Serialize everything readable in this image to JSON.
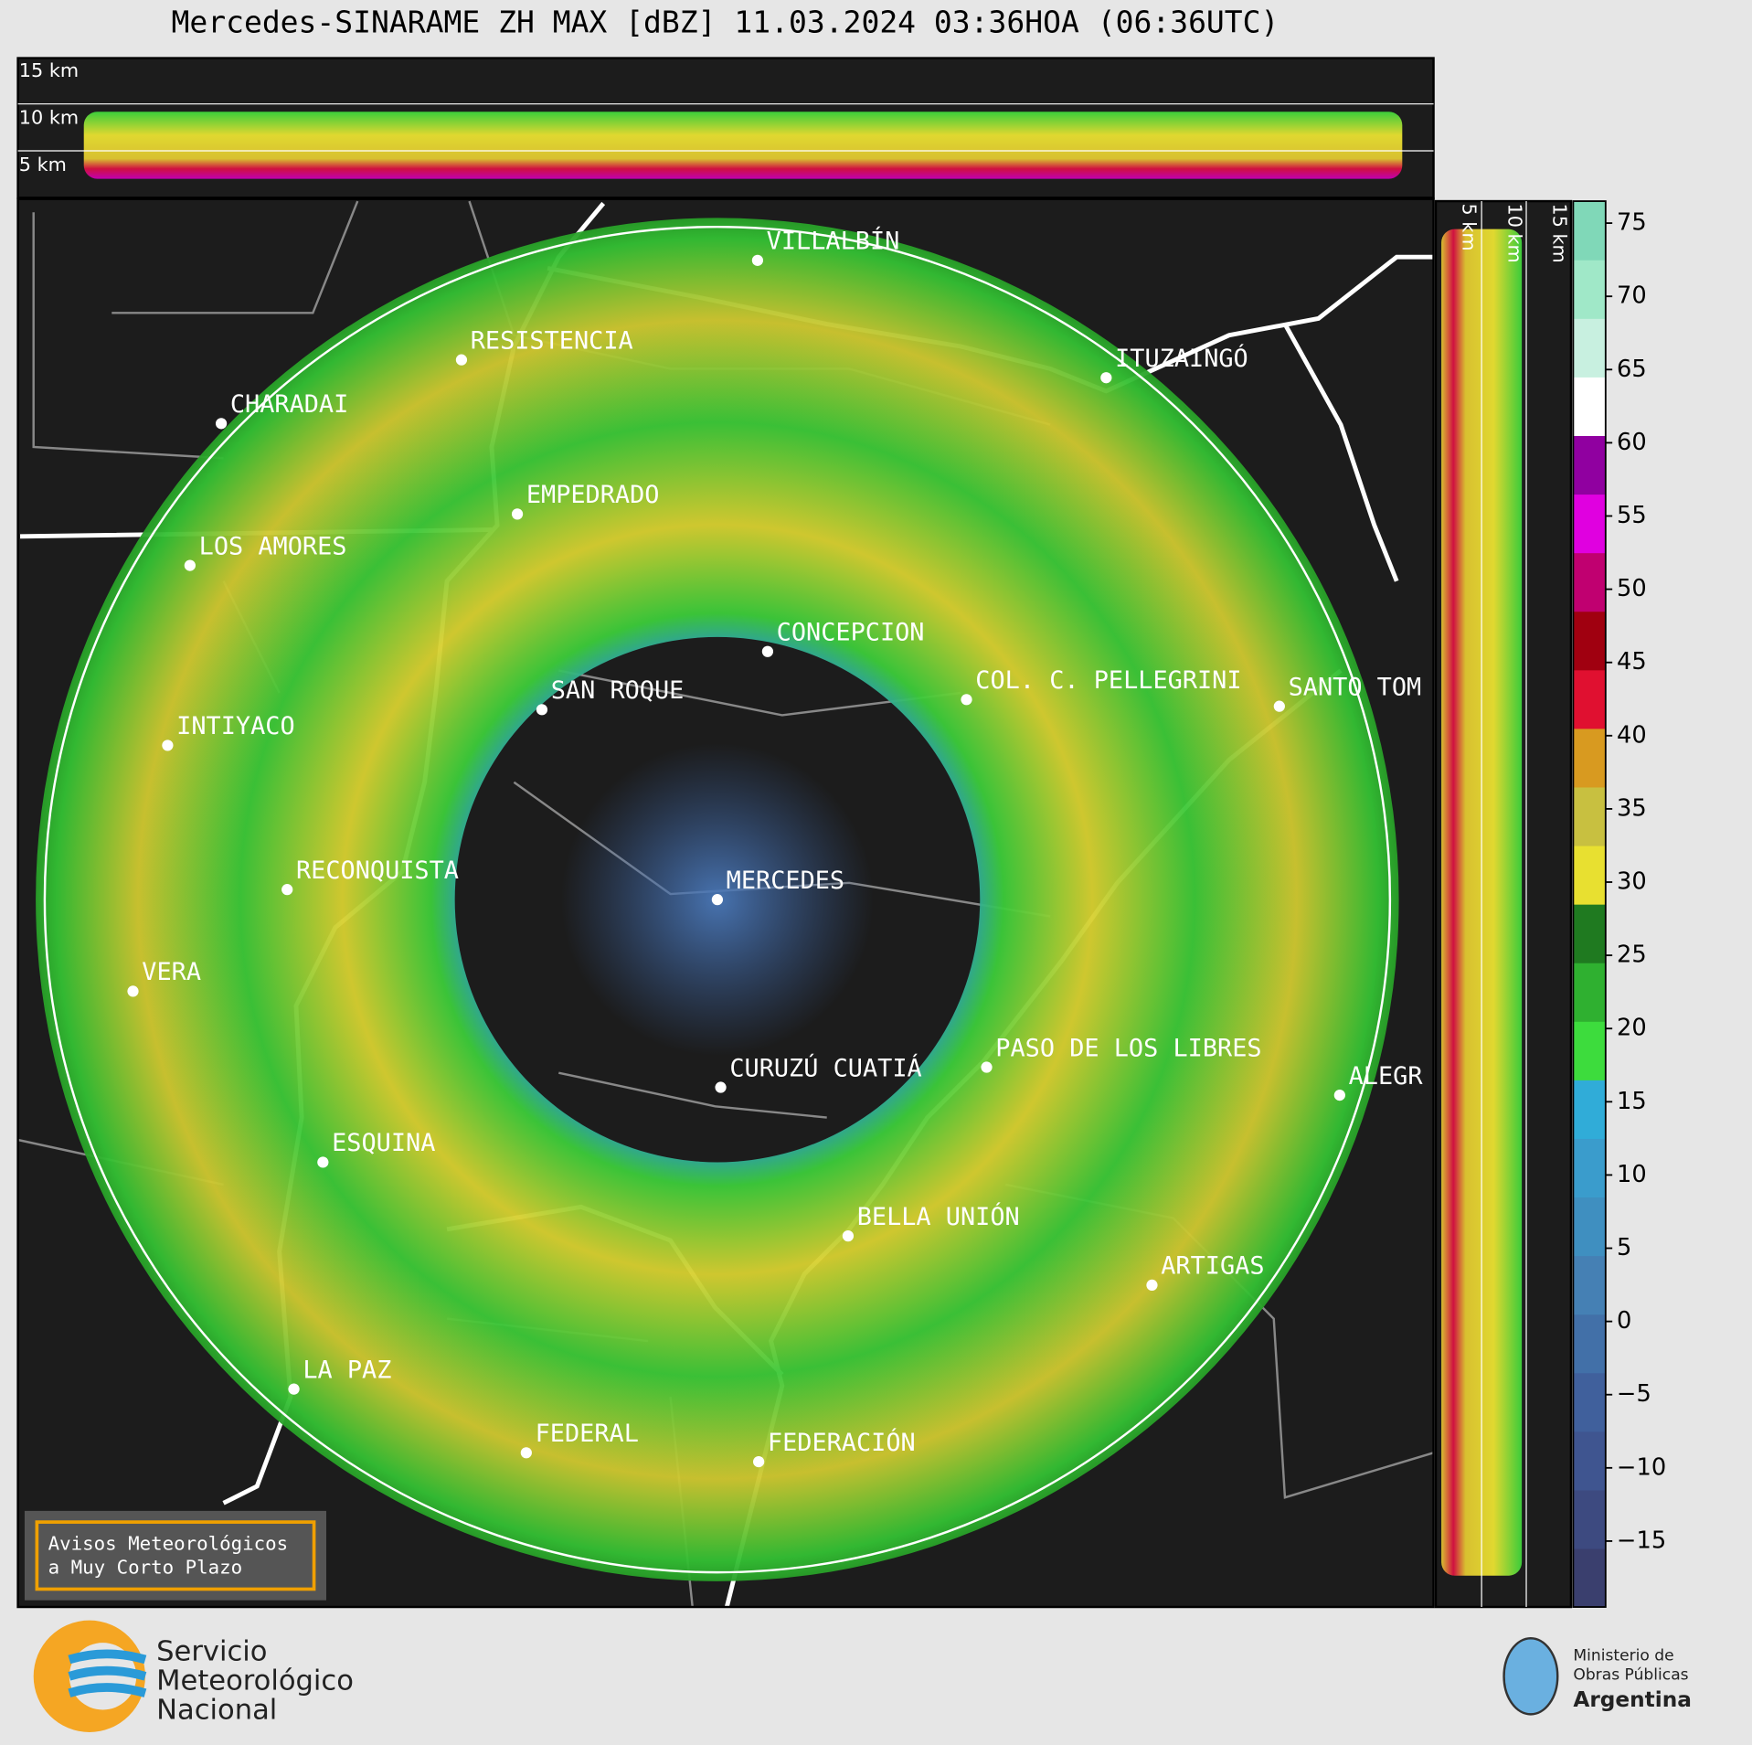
{
  "title": "Mercedes-SINARAME ZH MAX [dBZ] 11.03.2024 03:36HOA (06:36UTC)",
  "top_panel_labels": [
    "15 km",
    "10 km",
    "5 km"
  ],
  "right_panel_labels": [
    "5 km",
    "10 km",
    "15 km"
  ],
  "cities": [
    "VILLALBÍN",
    "RESISTENCIA",
    "CHARADAI",
    "ITUZAINGÓ",
    "EMPEDRADO",
    "LOS AMORES",
    "CONCEPCION",
    "SAN ROQUE",
    "COL. C. PELLEGRINI",
    "SANTO TOM",
    "INTIYACO",
    "RECONQUISTA",
    "MERCEDES",
    "VERA",
    "CURUZÚ CUATIÁ",
    "PASO DE LOS LIBRES",
    "ALEGR",
    "ESQUINA",
    "BELLA UNIÓN",
    "ARTIGAS",
    "LA PAZ",
    "FEDERAL",
    "FEDERACIÓN"
  ],
  "colorbar": {
    "lim": [
      -19.5,
      76.5
    ],
    "ticks": [
      {
        "value": -15,
        "label": "−15"
      },
      {
        "value": -10,
        "label": "−10"
      },
      {
        "value": -5,
        "label": "−5"
      },
      0,
      5,
      10,
      15,
      20,
      25,
      30,
      35,
      40,
      45,
      50,
      55,
      60,
      65,
      70,
      75
    ],
    "colors": [
      "#3a3f6e",
      "#3d4a80",
      "#3f5590",
      "#40609c",
      "#4270a8",
      "#4580b4",
      "#3f8fc0",
      "#3a9ccc",
      "#30acd8",
      "#3ddc3d",
      "#2fb030",
      "#1f7a20",
      "#e8e030",
      "#c8c040",
      "#d89a20",
      "#e01030",
      "#a00010",
      "#c00070",
      "#e000e0",
      "#9000a0",
      "#ffffff",
      "#c8f0e0",
      "#a0e8c8",
      "#80d8b8"
    ]
  },
  "warning_box": [
    "Avisos Meteorológicos",
    "a Muy Corto Plazo"
  ],
  "smn_logo": [
    "Servicio",
    "Meteorológico",
    "Nacional"
  ],
  "ministry_logo": [
    "Ministerio de",
    "Obras Públicas",
    "Argentina"
  ]
}
